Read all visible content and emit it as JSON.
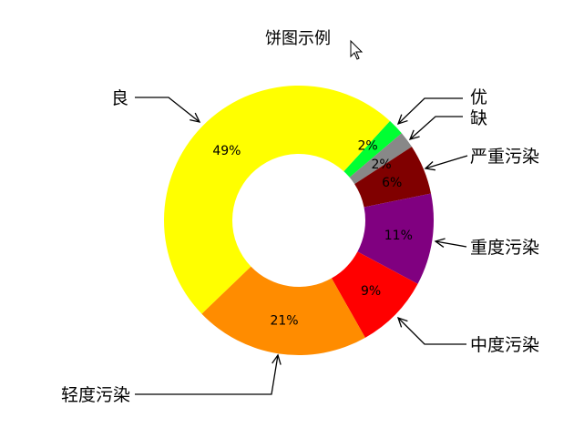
{
  "chart_data": {
    "type": "pie",
    "donut": true,
    "title": "饼图示例",
    "categories": [
      "优",
      "缺",
      "严重污染",
      "重度污染",
      "中度污染",
      "轻度污染",
      "良"
    ],
    "values": [
      2,
      2,
      6,
      11,
      9,
      21,
      49
    ],
    "value_labels": [
      "2%",
      "2%",
      "6%",
      "11%",
      "9%",
      "21%",
      "49%"
    ],
    "colors": [
      "#00ff33",
      "#888888",
      "#800000",
      "#800080",
      "#ff0000",
      "#ff8c00",
      "#ffff00"
    ],
    "legend": "none",
    "direction": "clockwise"
  }
}
